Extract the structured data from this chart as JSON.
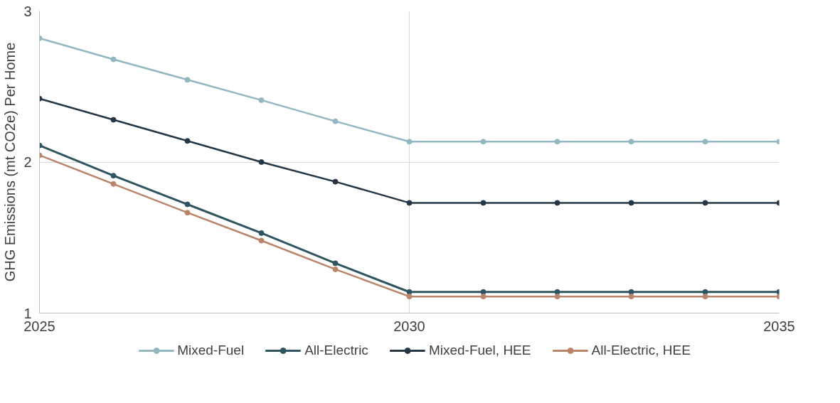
{
  "chart_data": {
    "type": "line",
    "ylabel": "GHG Emissions (mt CO2e) Per Home",
    "x": [
      2025,
      2026,
      2027,
      2028,
      2029,
      2030,
      2031,
      2032,
      2033,
      2034,
      2035
    ],
    "series": [
      {
        "name": "Mixed-Fuel",
        "color": "#93b7c0",
        "values": [
          2.82,
          2.68,
          2.545,
          2.41,
          2.27,
          2.135,
          2.135,
          2.135,
          2.135,
          2.135,
          2.135
        ]
      },
      {
        "name": "All-Electric",
        "color": "#2f5560",
        "values": [
          2.11,
          1.91,
          1.72,
          1.53,
          1.33,
          1.14,
          1.14,
          1.14,
          1.14,
          1.14,
          1.14
        ]
      },
      {
        "name": "Mixed-Fuel, HEE",
        "color": "#253746",
        "values": [
          2.42,
          2.28,
          2.14,
          2.0,
          1.87,
          1.73,
          1.73,
          1.73,
          1.73,
          1.73,
          1.73
        ]
      },
      {
        "name": "All-Electric, HEE",
        "color": "#b9846a",
        "values": [
          2.045,
          1.855,
          1.665,
          1.48,
          1.29,
          1.11,
          1.11,
          1.11,
          1.11,
          1.11,
          1.11
        ]
      }
    ],
    "xlim": [
      2025,
      2035
    ],
    "xticks": [
      2025,
      2030,
      2035
    ],
    "ylim": [
      1,
      3
    ],
    "yticks": [
      1,
      2,
      3
    ],
    "grid": true,
    "legend": "bottom",
    "marker": "circle",
    "line_style": "solid"
  }
}
